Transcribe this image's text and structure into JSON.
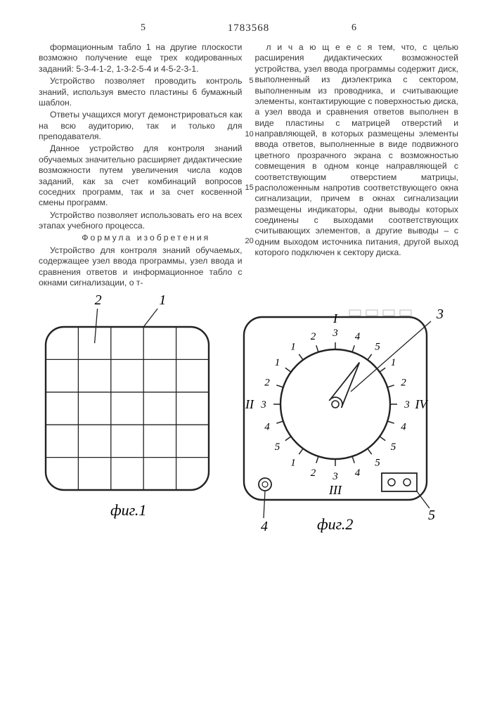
{
  "patent_number": "1783568",
  "col_left_num": "5",
  "col_right_num": "6",
  "left_col": {
    "p1": "формационным табло 1 на другие плоскости возможно получение еще трех кодированных заданий: 5-3-4-1-2, 1-3-2-5-4 и 4-5-2-3-1.",
    "p2": "Устройство позволяет проводить контроль знаний, используя вместо пластины 6 бумажный шаблон.",
    "p3": "Ответы учащихся могут демонстрироваться как на всю аудиторию, так и только для преподавателя.",
    "p4": "Данное устройство для контроля знаний обучаемых значительно расширяет дидактические возможности путем увеличения числа кодов заданий, как за счет комбинаций вопросов соседних программ, так и за счет косвенной смены программ.",
    "p5": "Устройство позволяет использовать его на всех этапах учебного процесса.",
    "formula": "Формула изобретения",
    "p6": "Устройство для контроля знаний обучаемых, содержащее узел ввода программы, узел ввода и сравнения ответов и информационное табло с окнами сигнализации, о т-"
  },
  "right_col": {
    "p1": "л и ч а ю щ е е с я  тем, что, с целью расширения дидактических возможностей устройства, узел ввода программы содержит диск, выполненный из диэлектрика с сектором, выполненным из проводника, и считывающие элементы, контактирующие с поверхностью диска, а узел ввода и сравнения ответов выполнен в виде пластины с матрицей отверстий и направляющей, в которых размещены элементы ввода ответов, выполненные в виде подвижного цветного прозрачного экрана с возможностью совмещения в одном конце направляющей с соответствующим отверстием матрицы, расположенным напротив соответствующего окна сигнализации, причем в окнах сигнализации размещены индикаторы, одни выводы которых соединены с выходами соответствующих считывающих элементов, а другие выводы – с одним выходом источника питания, другой выход которого подключен к сектору диска.",
    "line5": "5",
    "line10": "10",
    "line15": "15",
    "line20": "20"
  },
  "fig1": {
    "label": "фиг.1",
    "callout_1": "1",
    "callout_2": "2",
    "rows": 5,
    "cols": 5,
    "square_size": 232,
    "corner_r": 26,
    "stroke": "#222222",
    "stroke_w": 2.4,
    "grid_w": 1.3
  },
  "fig2": {
    "label": "фиг.2",
    "callout_3": "3",
    "callout_4": "4",
    "callout_5": "5",
    "roman": [
      "I",
      "II",
      "III",
      "IV"
    ],
    "dial_numbers": [
      "1",
      "2",
      "3",
      "4",
      "5"
    ],
    "square_size": 260,
    "corner_r": 26,
    "dial_r": 78,
    "stroke": "#222222",
    "stroke_w": 2.4,
    "tick_inner": 78,
    "tick_outer": 88,
    "num_r": 102
  }
}
